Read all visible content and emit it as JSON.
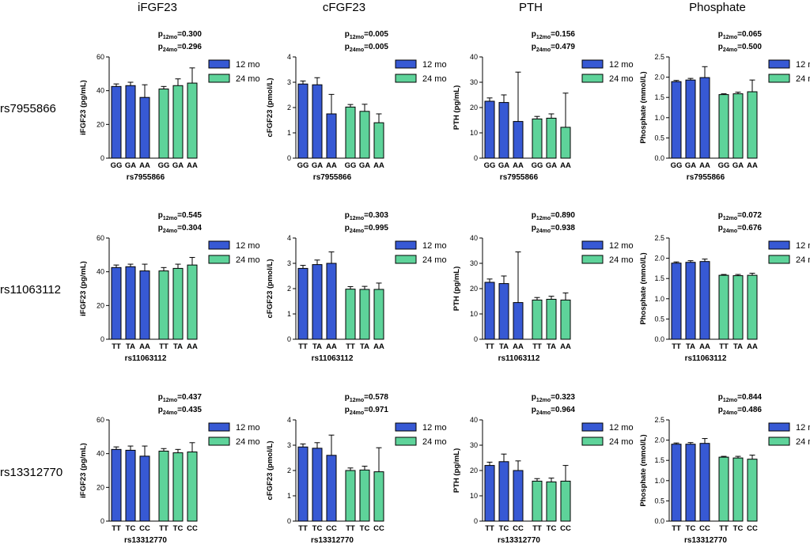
{
  "colors": {
    "s12": "#3759D4",
    "s24": "#5ED39A"
  },
  "legend": {
    "s12": "12 mo",
    "s24": "24 mo"
  },
  "p_labels": {
    "p": "p",
    "sub12": "12mo",
    "sub24": "24mo"
  },
  "column_titles": [
    "iFGF23",
    "cFGF23",
    "PTH",
    "Phosphate"
  ],
  "row_labels": [
    "rs7955866",
    "rs11063112",
    "rs13312770"
  ],
  "chart_data": [
    {
      "type": "bar",
      "row": 0,
      "col": 0,
      "title": "iFGF23",
      "xlabel": "rs7955866",
      "ylabel": "iFGF23 (pg/mL)",
      "categories": [
        "GG",
        "GA",
        "AA"
      ],
      "ylim": [
        0,
        60
      ],
      "yticks": [
        "0",
        "20",
        "40",
        "60"
      ],
      "series": [
        {
          "name": "12 mo",
          "values": [
            42.5,
            43,
            36
          ],
          "err": [
            1.5,
            2,
            7.5
          ]
        },
        {
          "name": "24 mo",
          "values": [
            41,
            43,
            44.5
          ],
          "err": [
            1.5,
            4,
            9
          ]
        }
      ],
      "p12": "=0.300",
      "p24": "=0.296"
    },
    {
      "type": "bar",
      "row": 0,
      "col": 1,
      "title": "cFGF23",
      "xlabel": "rs7955866",
      "ylabel": "cFGF23 (pmol/L)",
      "categories": [
        "GG",
        "GA",
        "AA"
      ],
      "ylim": [
        0,
        4
      ],
      "yticks": [
        "0",
        "1",
        "2",
        "3",
        "4"
      ],
      "series": [
        {
          "name": "12 mo",
          "values": [
            2.93,
            2.9,
            1.75
          ],
          "err": [
            0.12,
            0.28,
            0.77
          ]
        },
        {
          "name": "24 mo",
          "values": [
            2.02,
            1.85,
            1.4
          ],
          "err": [
            0.1,
            0.28,
            0.35
          ]
        }
      ],
      "p12": "=0.005",
      "p24": "=0.005"
    },
    {
      "type": "bar",
      "row": 0,
      "col": 2,
      "title": "PTH",
      "xlabel": "rs7955866",
      "ylabel": "PTH (pg/mL)",
      "categories": [
        "GG",
        "GA",
        "AA"
      ],
      "ylim": [
        0,
        40
      ],
      "yticks": [
        "0",
        "10",
        "20",
        "30",
        "40"
      ],
      "series": [
        {
          "name": "12 mo",
          "values": [
            22.5,
            22,
            14.5
          ],
          "err": [
            1.3,
            3,
            19.5
          ]
        },
        {
          "name": "24 mo",
          "values": [
            15.5,
            15.8,
            12.2
          ],
          "err": [
            1,
            1.7,
            13.5
          ]
        }
      ],
      "p12": "=0.156",
      "p24": "=0.479"
    },
    {
      "type": "bar",
      "row": 0,
      "col": 3,
      "title": "Phosphate",
      "xlabel": "rs7955866",
      "ylabel": "Phosphate (mmol/L)",
      "categories": [
        "GG",
        "GA",
        "AA"
      ],
      "ylim": [
        0,
        2.5
      ],
      "yticks": [
        "0.0",
        "0.5",
        "1.0",
        "1.5",
        "2.0",
        "2.5"
      ],
      "series": [
        {
          "name": "12 mo",
          "values": [
            1.89,
            1.93,
            1.99
          ],
          "err": [
            0.03,
            0.04,
            0.27
          ]
        },
        {
          "name": "24 mo",
          "values": [
            1.57,
            1.59,
            1.64
          ],
          "err": [
            0.02,
            0.04,
            0.29
          ]
        }
      ],
      "p12": "=0.065",
      "p24": "=0.500"
    },
    {
      "type": "bar",
      "row": 1,
      "col": 0,
      "title": "iFGF23",
      "xlabel": "rs11063112",
      "ylabel": "iFGF23 (pg/mL)",
      "categories": [
        "TT",
        "TA",
        "AA"
      ],
      "ylim": [
        0,
        60
      ],
      "yticks": [
        "0",
        "20",
        "40",
        "60"
      ],
      "series": [
        {
          "name": "12 mo",
          "values": [
            42.5,
            43,
            40.5
          ],
          "err": [
            1.5,
            1.5,
            4
          ]
        },
        {
          "name": "24 mo",
          "values": [
            40.5,
            42,
            44
          ],
          "err": [
            2,
            2.5,
            4.5
          ]
        }
      ],
      "p12": "=0.545",
      "p24": "=0.304"
    },
    {
      "type": "bar",
      "row": 1,
      "col": 1,
      "title": "cFGF23",
      "xlabel": "rs11063112",
      "ylabel": "cFGF23 (pmol/L)",
      "categories": [
        "TT",
        "TA",
        "AA"
      ],
      "ylim": [
        0,
        4
      ],
      "yticks": [
        "0",
        "1",
        "2",
        "3",
        "4"
      ],
      "series": [
        {
          "name": "12 mo",
          "values": [
            2.8,
            2.95,
            3.0
          ],
          "err": [
            0.12,
            0.18,
            0.45
          ]
        },
        {
          "name": "24 mo",
          "values": [
            1.98,
            1.97,
            1.97
          ],
          "err": [
            0.1,
            0.12,
            0.25
          ]
        }
      ],
      "p12": "=0.303",
      "p24": "=0.995"
    },
    {
      "type": "bar",
      "row": 1,
      "col": 2,
      "title": "PTH",
      "xlabel": "rs11063112",
      "ylabel": "PTH (pg/mL)",
      "categories": [
        "TT",
        "TA",
        "AA"
      ],
      "ylim": [
        0,
        40
      ],
      "yticks": [
        "0",
        "10",
        "20",
        "30",
        "40"
      ],
      "series": [
        {
          "name": "12 mo",
          "values": [
            22.5,
            22,
            14.5
          ],
          "err": [
            1.3,
            3,
            20
          ]
        },
        {
          "name": "24 mo",
          "values": [
            15.5,
            15.8,
            15.5
          ],
          "err": [
            1,
            1.2,
            2.8
          ]
        }
      ],
      "p12": "=0.890",
      "p24": "=0.938"
    },
    {
      "type": "bar",
      "row": 1,
      "col": 3,
      "title": "Phosphate",
      "xlabel": "rs11063112",
      "ylabel": "Phosphate (mmol/L)",
      "categories": [
        "TT",
        "TA",
        "AA"
      ],
      "ylim": [
        0,
        2.5
      ],
      "yticks": [
        "0.0",
        "0.5",
        "1.0",
        "1.5",
        "2.0",
        "2.5"
      ],
      "series": [
        {
          "name": "12 mo",
          "values": [
            1.88,
            1.9,
            1.92
          ],
          "err": [
            0.03,
            0.04,
            0.06
          ]
        },
        {
          "name": "24 mo",
          "values": [
            1.58,
            1.57,
            1.58
          ],
          "err": [
            0.02,
            0.03,
            0.05
          ]
        }
      ],
      "p12": "=0.072",
      "p24": "=0.676"
    },
    {
      "type": "bar",
      "row": 2,
      "col": 0,
      "title": "iFGF23",
      "xlabel": "rs13312770",
      "ylabel": "iFGF23 (pg/mL)",
      "categories": [
        "TT",
        "TC",
        "CC"
      ],
      "ylim": [
        0,
        60
      ],
      "yticks": [
        "0",
        "20",
        "40",
        "60"
      ],
      "series": [
        {
          "name": "12 mo",
          "values": [
            42.5,
            42,
            38.5
          ],
          "err": [
            1.5,
            2.5,
            6
          ]
        },
        {
          "name": "24 mo",
          "values": [
            41.5,
            40.5,
            41
          ],
          "err": [
            1.5,
            2,
            5.5
          ]
        }
      ],
      "p12": "=0.437",
      "p24": "=0.435"
    },
    {
      "type": "bar",
      "row": 2,
      "col": 1,
      "title": "cFGF23",
      "xlabel": "rs13312770",
      "ylabel": "cFGF23 (pmol/L)",
      "categories": [
        "TT",
        "TC",
        "CC"
      ],
      "ylim": [
        0,
        4
      ],
      "yticks": [
        "0",
        "1",
        "2",
        "3",
        "4"
      ],
      "series": [
        {
          "name": "12 mo",
          "values": [
            2.93,
            2.88,
            2.6
          ],
          "err": [
            0.12,
            0.22,
            0.8
          ]
        },
        {
          "name": "24 mo",
          "values": [
            2.0,
            2.02,
            1.95
          ],
          "err": [
            0.1,
            0.15,
            0.95
          ]
        }
      ],
      "p12": "=0.578",
      "p24": "=0.971"
    },
    {
      "type": "bar",
      "row": 2,
      "col": 2,
      "title": "PTH",
      "xlabel": "rs13312770",
      "ylabel": "PTH (pg/mL)",
      "categories": [
        "TT",
        "TC",
        "CC"
      ],
      "ylim": [
        0,
        40
      ],
      "yticks": [
        "0",
        "10",
        "20",
        "30",
        "40"
      ],
      "series": [
        {
          "name": "12 mo",
          "values": [
            22,
            23.5,
            20
          ],
          "err": [
            1.3,
            3,
            3.8
          ]
        },
        {
          "name": "24 mo",
          "values": [
            15.8,
            15.5,
            15.8
          ],
          "err": [
            1,
            1.5,
            6.2
          ]
        }
      ],
      "p12": "=0.323",
      "p24": "=0.964"
    },
    {
      "type": "bar",
      "row": 2,
      "col": 3,
      "title": "Phosphate",
      "xlabel": "rs13312770",
      "ylabel": "Phosphate (mmol/L)",
      "categories": [
        "TT",
        "TC",
        "CC"
      ],
      "ylim": [
        0,
        2.5
      ],
      "yticks": [
        "0.0",
        "0.5",
        "1.0",
        "1.5",
        "2.0",
        "2.5"
      ],
      "series": [
        {
          "name": "12 mo",
          "values": [
            1.9,
            1.9,
            1.92
          ],
          "err": [
            0.03,
            0.04,
            0.12
          ]
        },
        {
          "name": "24 mo",
          "values": [
            1.58,
            1.56,
            1.53
          ],
          "err": [
            0.02,
            0.04,
            0.1
          ]
        }
      ],
      "p12": "=0.844",
      "p24": "=0.486"
    }
  ]
}
